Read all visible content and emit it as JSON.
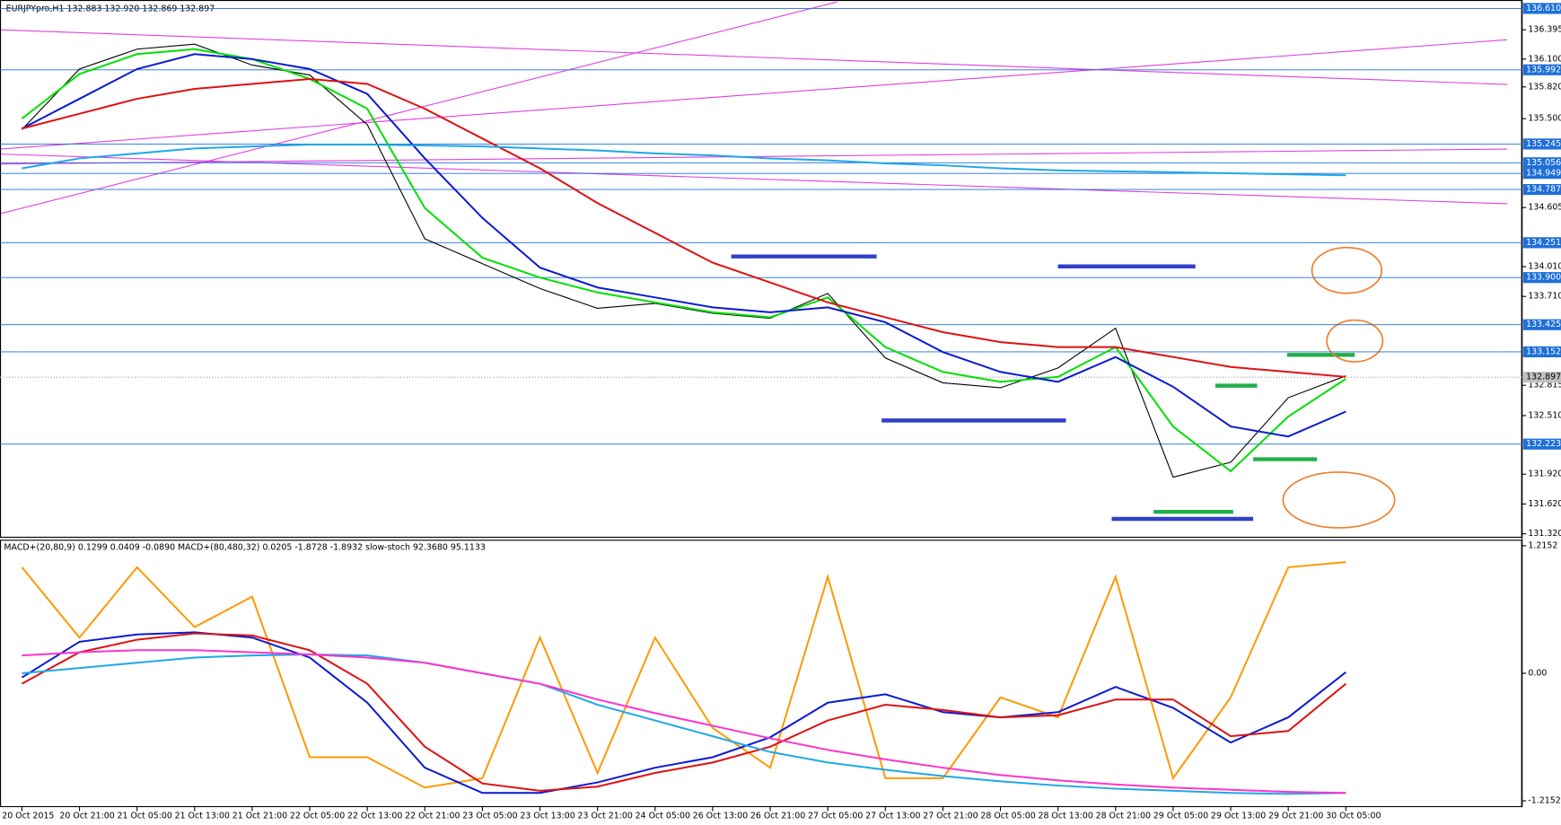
{
  "chart_data": [
    {
      "type": "line",
      "title": "EURJPYpro,H1  132.883 132.920 132.869 132.897",
      "ylim": [
        131.29,
        136.655
      ],
      "yticks": [
        {
          "value": 136.395,
          "label": "136.395"
        },
        {
          "value": 136.1,
          "label": "136.100"
        },
        {
          "value": 135.82,
          "label": "135.820"
        },
        {
          "value": 135.5,
          "label": "135.500"
        },
        {
          "value": 134.605,
          "label": "134.605"
        },
        {
          "value": 134.01,
          "label": "134.010"
        },
        {
          "value": 133.71,
          "label": "133.710"
        },
        {
          "value": 132.815,
          "label": "132.815"
        },
        {
          "value": 132.51,
          "label": "132.510"
        },
        {
          "value": 131.92,
          "label": "131.920"
        },
        {
          "value": 131.62,
          "label": "131.620"
        },
        {
          "value": 131.32,
          "label": "131.320"
        }
      ],
      "levels": [
        {
          "value": 136.61,
          "label": "136.610"
        },
        {
          "value": 135.992,
          "label": "135.992"
        },
        {
          "value": 135.245,
          "label": "135.245"
        },
        {
          "value": 135.056,
          "label": "135.056"
        },
        {
          "value": 134.949,
          "label": "134.949"
        },
        {
          "value": 134.787,
          "label": "134.787"
        },
        {
          "value": 134.251,
          "label": "134.251"
        },
        {
          "value": 133.9,
          "label": "133.900"
        },
        {
          "value": 133.425,
          "label": "133.425"
        },
        {
          "value": 133.152,
          "label": "133.152"
        },
        {
          "value": 132.223,
          "label": "132.223"
        }
      ],
      "level_color": "#1e6fd9",
      "last_price": {
        "value": 132.897,
        "label": "132.897"
      },
      "series": [
        {
          "color": "#000000",
          "values": [
            135.39,
            136.0,
            136.2,
            136.25,
            136.04,
            135.94,
            135.44,
            134.29,
            134.04,
            133.79,
            133.59,
            133.64,
            133.54,
            133.49,
            133.74,
            133.09,
            132.84,
            132.79,
            132.99,
            133.39,
            131.89,
            132.04,
            132.69,
            132.91
          ]
        },
        {
          "color": "#00e000",
          "values": [
            135.5,
            135.95,
            136.15,
            136.2,
            136.1,
            135.9,
            135.6,
            134.6,
            134.1,
            133.9,
            133.75,
            133.65,
            133.55,
            133.5,
            133.7,
            133.2,
            132.95,
            132.85,
            132.9,
            133.2,
            132.4,
            131.95,
            132.5,
            132.88
          ]
        },
        {
          "color": "#0a1ad0",
          "values": [
            135.4,
            135.7,
            136.0,
            136.15,
            136.1,
            136.0,
            135.75,
            135.1,
            134.5,
            134.0,
            133.8,
            133.7,
            133.6,
            133.55,
            133.6,
            133.45,
            133.15,
            132.95,
            132.85,
            133.1,
            132.8,
            132.4,
            132.3,
            132.55
          ]
        },
        {
          "color": "#e01010",
          "values": [
            135.4,
            135.55,
            135.7,
            135.8,
            135.85,
            135.9,
            135.85,
            135.6,
            135.3,
            135.0,
            134.65,
            134.35,
            134.05,
            133.85,
            133.65,
            133.5,
            133.35,
            133.25,
            133.2,
            133.2,
            133.1,
            133.0,
            132.95,
            132.9
          ]
        },
        {
          "color": "#1ea8e8",
          "values": [
            135.0,
            135.1,
            135.15,
            135.2,
            135.22,
            135.24,
            135.24,
            135.23,
            135.22,
            135.2,
            135.18,
            135.15,
            135.13,
            135.1,
            135.08,
            135.05,
            135.03,
            135.0,
            134.98,
            134.97,
            134.96,
            134.95,
            134.94,
            134.93
          ]
        }
      ]
    },
    {
      "type": "line",
      "title": "MACD+(20,80,9) 0.1299 0.0409 -0.0890  MACD+(80,480,32) 0.0205 -1.8728 -1.8932  slow-stoch 92.3680 95.1133",
      "categories": [
        "20 Oct 2015",
        "20 Oct 21:00",
        "21 Oct 05:00",
        "21 Oct 13:00",
        "21 Oct 21:00",
        "22 Oct 05:00",
        "22 Oct 13:00",
        "22 Oct 21:00",
        "23 Oct 05:00",
        "23 Oct 13:00",
        "23 Oct 21:00",
        "24 Oct 05:00",
        "26 Oct 13:00",
        "26 Oct 21:00",
        "27 Oct 05:00",
        "27 Oct 13:00",
        "27 Oct 21:00",
        "28 Oct 05:00",
        "28 Oct 13:00",
        "28 Oct 21:00",
        "29 Oct 05:00",
        "29 Oct 13:00",
        "29 Oct 21:00",
        "30 Oct 05:00"
      ],
      "ylim": [
        -1.2754,
        1.2726
      ],
      "yticks": [
        {
          "value": 1.2152,
          "label": "1.2152"
        },
        {
          "value": 0,
          "label": "0.00"
        },
        {
          "value": -1.2152,
          "label": "-1.2152"
        }
      ],
      "series": [
        {
          "color": "#ff9900",
          "values": [
            1.01,
            0.34,
            1.01,
            0.44,
            0.73,
            -0.8,
            -0.8,
            -1.09,
            -1.0,
            0.34,
            -0.95,
            0.34,
            -0.52,
            -0.9,
            0.92,
            -1.0,
            -1.0,
            -0.23,
            -0.42,
            0.92,
            -1.0,
            -0.23,
            1.01,
            1.06
          ]
        },
        {
          "color": "#0a1ad0",
          "values": [
            -0.04,
            0.3,
            0.37,
            0.39,
            0.34,
            0.15,
            -0.28,
            -0.9,
            -1.14,
            -1.14,
            -1.04,
            -0.9,
            -0.8,
            -0.61,
            -0.28,
            -0.2,
            -0.37,
            -0.42,
            -0.37,
            -0.13,
            -0.33,
            -0.66,
            -0.42,
            0.01
          ]
        },
        {
          "color": "#e01010",
          "values": [
            -0.1,
            0.2,
            0.32,
            0.38,
            0.36,
            0.22,
            -0.1,
            -0.7,
            -1.05,
            -1.12,
            -1.08,
            -0.95,
            -0.85,
            -0.7,
            -0.45,
            -0.3,
            -0.35,
            -0.42,
            -0.4,
            -0.25,
            -0.25,
            -0.6,
            -0.55,
            -0.1
          ]
        },
        {
          "color": "#1ea8e8",
          "values": [
            0.0,
            0.05,
            0.1,
            0.15,
            0.17,
            0.18,
            0.17,
            0.1,
            0.0,
            -0.1,
            -0.3,
            -0.45,
            -0.6,
            -0.75,
            -0.85,
            -0.92,
            -0.98,
            -1.03,
            -1.07,
            -1.1,
            -1.12,
            -1.14,
            -1.15,
            -1.14
          ]
        },
        {
          "color": "#ff33cc",
          "values": [
            0.17,
            0.2,
            0.22,
            0.22,
            0.2,
            0.18,
            0.15,
            0.1,
            0.0,
            -0.1,
            -0.25,
            -0.38,
            -0.5,
            -0.62,
            -0.73,
            -0.82,
            -0.9,
            -0.97,
            -1.02,
            -1.06,
            -1.09,
            -1.11,
            -1.13,
            -1.14
          ]
        }
      ]
    }
  ]
}
